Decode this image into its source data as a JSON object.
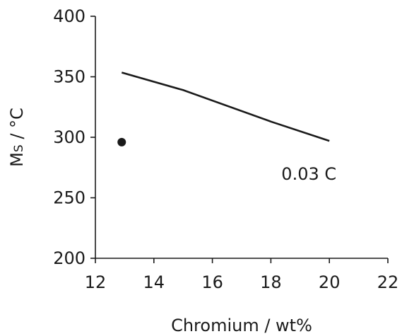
{
  "chart_data": {
    "type": "line",
    "xlabel": "Chromium / wt%",
    "ylabel": {
      "main": "M",
      "subscript": "S",
      "unit": " / °C"
    },
    "xlim": [
      12,
      22
    ],
    "ylim": [
      200,
      400
    ],
    "xticks": [
      "12",
      "14",
      "16",
      "18",
      "20",
      "22"
    ],
    "yticks": [
      "200",
      "250",
      "300",
      "350",
      "400"
    ],
    "grid": false,
    "series": [
      {
        "type": "line",
        "x": [
          12.9,
          15,
          18,
          20
        ],
        "y": [
          353.5,
          339,
          313,
          297
        ]
      },
      {
        "type": "scatter",
        "x": [
          12.9
        ],
        "y": [
          296
        ]
      }
    ],
    "annotations": [
      {
        "text": "0.03 C",
        "x": 19.3,
        "y": 265
      }
    ],
    "colors": {
      "ink": "#1a1a1a"
    }
  }
}
